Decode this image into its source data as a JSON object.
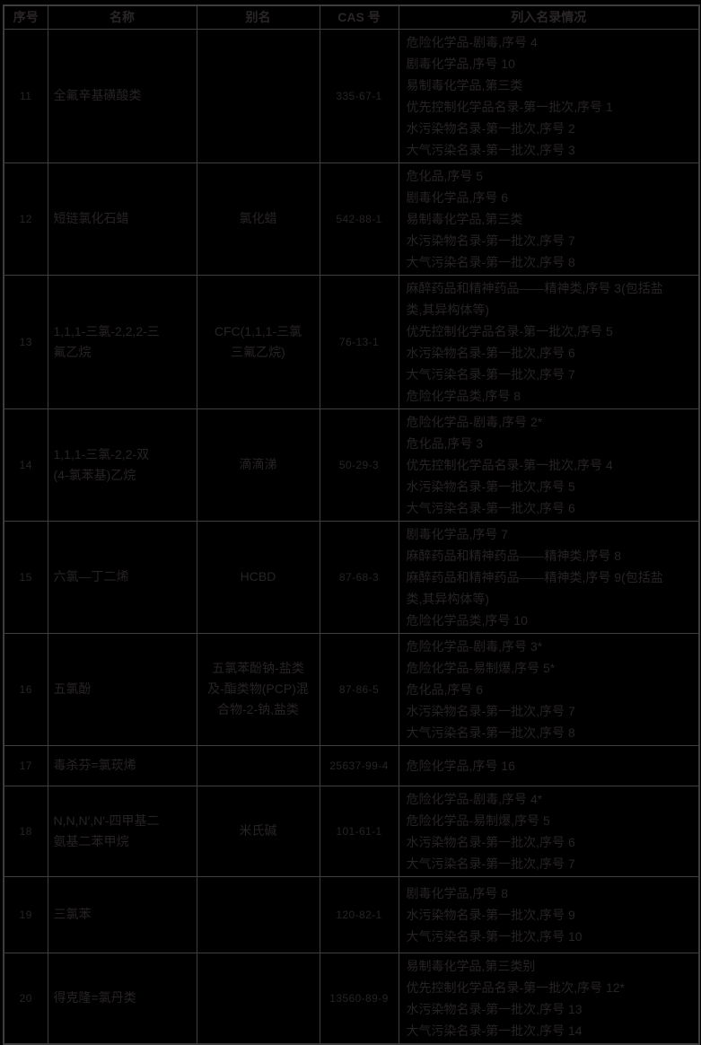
{
  "colors": {
    "background": "#000000",
    "border": "#3e3e3e",
    "text": "#272324"
  },
  "table": {
    "headers": [
      "序号",
      "名称",
      "别名",
      "CAS 号",
      "列入名录情况"
    ],
    "rows": [
      {
        "no": "11",
        "name": [
          "全氟辛基磺酸类"
        ],
        "alias": [],
        "cas": "335-67-1",
        "listings": [
          "危险化学品-剧毒,序号 4",
          "剧毒化学品,序号 10",
          "易制毒化学品,第三类",
          "优先控制化学品名录-第一批次,序号 1",
          "水污染物名录-第一批次,序号 2",
          "大气污染名录-第一批次,序号 3"
        ]
      },
      {
        "no": "12",
        "name": [
          "短链氯化石蜡"
        ],
        "alias": [
          "氯化蜡"
        ],
        "cas": "542-88-1",
        "listings": [
          "危化品,序号 5",
          "剧毒化学品,序号 6",
          "易制毒化学品,第三类",
          "水污染物名录-第一批次,序号 7",
          "大气污染名录-第一批次,序号 8"
        ]
      },
      {
        "no": "13",
        "name": [
          "1,1,1-三氯-2,2,2-三",
          "氟乙烷"
        ],
        "alias": [
          "CFC(1,1,1-三氯",
          "三氟乙烷)"
        ],
        "cas": "76-13-1",
        "listings": [
          "麻醉药品和精神药品——精神类,序号 3(包括盐",
          "类,其异构体等)",
          "优先控制化学品名录-第一批次,序号 5",
          "水污染物名录-第一批次,序号 6",
          "大气污染名录-第一批次,序号 7",
          "危险化学品类,序号 8"
        ]
      },
      {
        "no": "14",
        "name": [
          "1,1,1-三氯-2,2-双",
          "(4-氯苯基)乙烷"
        ],
        "alias": [
          "滴滴涕"
        ],
        "cas": "50-29-3",
        "listings": [
          "危险化学品-剧毒,序号 2*",
          "危化品,序号 3",
          "优先控制化学品名录-第一批次,序号 4",
          "水污染物名录-第一批次,序号 5",
          "大气污染名录-第一批次,序号 6"
        ]
      },
      {
        "no": "15",
        "name": [
          "六氯—丁二烯"
        ],
        "alias": [
          "HCBD"
        ],
        "cas": "87-68-3",
        "listings": [
          "剧毒化学品,序号 7",
          "麻醉药品和精神药品——精神类,序号 8",
          "麻醉药品和精神药品——精神类,序号 9(包括盐",
          "类,其异构体等)",
          "危险化学品类,序号 10"
        ]
      },
      {
        "no": "16",
        "name": [
          "五氯酚"
        ],
        "alias": [
          "五氯苯酚钠-盐类",
          "及-酯类物(PCP)混",
          "合物-2-钠,盐类"
        ],
        "cas": "87-86-5",
        "listings": [
          "危险化学品-剧毒,序号 3*",
          "危险化学品-易制爆,序号 5*",
          "危化品,序号 6",
          "水污染物名录-第一批次,序号 7",
          "大气污染名录-第一批次,序号 8"
        ]
      },
      {
        "no": "17",
        "name": [
          "毒杀芬=氯莰烯"
        ],
        "alias": [],
        "cas": "25637-99-4",
        "listings": [
          "危险化学品,序号 16"
        ]
      },
      {
        "no": "18",
        "name": [
          "N,N,N′,N′-四甲基二",
          "氨基二苯甲烷"
        ],
        "alias": [
          "米氏碱"
        ],
        "cas": "101-61-1",
        "listings": [
          "危险化学品-剧毒,序号 4*",
          "危险化学品-易制爆,序号 5",
          "水污染物名录-第一批次,序号 6",
          "大气污染名录-第一批次,序号 7"
        ]
      },
      {
        "no": "19",
        "name": [
          "三氯苯"
        ],
        "alias": [],
        "cas": "120-82-1",
        "listings": [
          "剧毒化学品,序号 8",
          "水污染物名录-第一批次,序号 9",
          "大气污染名录-第一批次,序号 10"
        ]
      },
      {
        "no": "20",
        "name": [
          "得克隆=氯丹类"
        ],
        "alias": [],
        "cas": "13560-89-9",
        "listings": [
          "易制毒化学品,第三类别",
          "优先控制化学品名录-第一批次,序号 12*",
          "水污染物名录-第一批次,序号 13",
          "大气污染名录-第一批次,序号 14"
        ]
      }
    ]
  }
}
